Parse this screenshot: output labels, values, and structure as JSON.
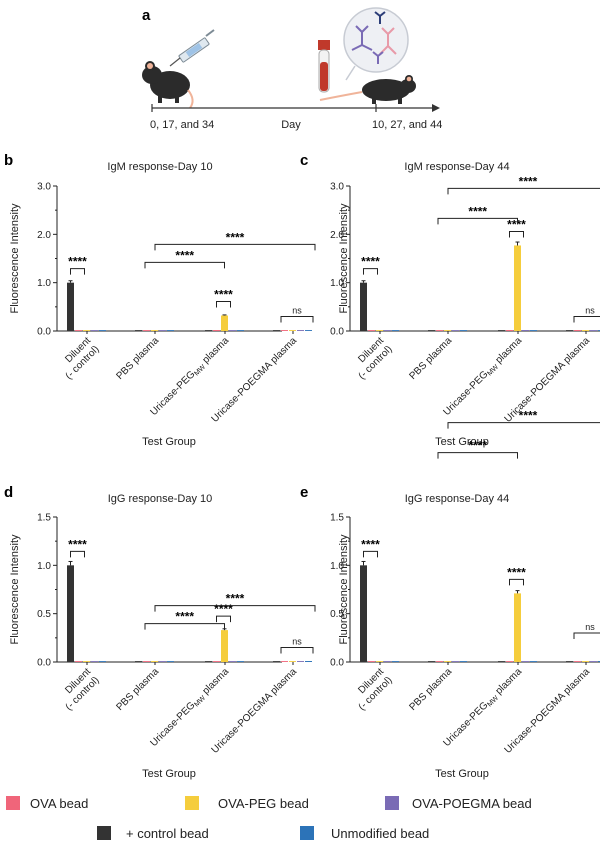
{
  "timeline": {
    "label": "a",
    "injection_days": "0, 17, and 34",
    "axis_label": "Day",
    "bleed_days": "10, 27, and 44"
  },
  "colors": {
    "ova": "#f0657a",
    "ova_peg": "#f5cd3c",
    "ova_poegma": "#7a6bb5",
    "control": "#333333",
    "unmodified": "#2c73b8",
    "skin": "#f0b49a",
    "blood": "#c0392b",
    "mouse": "#2b2b2b"
  },
  "legend": {
    "series_order": [
      "OVA bead",
      "OVA-PEG bead",
      "OVA-POEGMA bead",
      "+ control bead",
      "Unmodified bead"
    ]
  },
  "chart_data": [
    {
      "panel": "b",
      "type": "bar",
      "title": "IgM response-Day 10",
      "xlabel": "Test Group",
      "ylabel": "Fluorescence Intensity",
      "ylim": [
        0,
        3.0
      ],
      "yticks": [
        "0.0",
        "1.0",
        "2.0",
        "3.0"
      ],
      "categories": [
        "Diluent\n(- control)",
        "PBS plasma",
        "Uricase-PEGMW plasma",
        "Uricase-POEGMA plasma"
      ],
      "series": [
        {
          "name": "+ control bead",
          "values": [
            1.0,
            0,
            0,
            0
          ]
        },
        {
          "name": "OVA bead",
          "values": [
            0.01,
            0.01,
            0.02,
            0.01
          ]
        },
        {
          "name": "OVA-PEG bead",
          "values": [
            0.0,
            0.0,
            0.32,
            0.0
          ]
        },
        {
          "name": "OVA-POEGMA bead",
          "values": [
            0.0,
            0.0,
            0.01,
            0.0
          ]
        },
        {
          "name": "Unmodified bead",
          "values": [
            0.0,
            0.0,
            0.0,
            0.01
          ]
        }
      ],
      "significance": [
        {
          "label": "****"
        },
        {
          "label": "****"
        },
        {
          "label": "****"
        },
        {
          "label": "****"
        },
        {
          "label": "ns"
        }
      ]
    },
    {
      "panel": "c",
      "type": "bar",
      "title": "IgM response-Day 44",
      "xlabel": "Test Group",
      "ylabel": "Fluorescence Intensity",
      "ylim": [
        0,
        3.0
      ],
      "yticks": [
        "0.0",
        "1.0",
        "2.0",
        "3.0"
      ],
      "categories": [
        "Diluent\n(- control)",
        "PBS plasma",
        "Uricase-PEGMW plasma",
        "Uricase-POEGMA plasma"
      ],
      "series": [
        {
          "name": "+ control bead",
          "values": [
            1.0,
            0,
            0,
            0
          ]
        },
        {
          "name": "OVA bead",
          "values": [
            0.01,
            0.01,
            0.02,
            0.02
          ]
        },
        {
          "name": "OVA-PEG bead",
          "values": [
            0.0,
            0.01,
            1.77,
            0.0
          ]
        },
        {
          "name": "OVA-POEGMA bead",
          "values": [
            0.0,
            0.0,
            0.02,
            0.0
          ]
        },
        {
          "name": "Unmodified bead",
          "values": [
            0.0,
            0.0,
            0.0,
            0.01
          ]
        }
      ],
      "significance": [
        {
          "label": "****"
        },
        {
          "label": "****"
        },
        {
          "label": "****"
        },
        {
          "label": "****"
        },
        {
          "label": "ns"
        }
      ]
    },
    {
      "panel": "d",
      "type": "bar",
      "title": "IgG response-Day 10",
      "xlabel": "Test Group",
      "ylabel": "Fluorescence Intensity",
      "ylim": [
        0,
        1.5
      ],
      "yticks": [
        "0.0",
        "0.5",
        "1.0",
        "1.5"
      ],
      "categories": [
        "Diluent\n(- control)",
        "PBS plasma",
        "Uricase-PEGMW plasma",
        "Uricase-POEGMA plasma"
      ],
      "series": [
        {
          "name": "+ control bead",
          "values": [
            1.0,
            0,
            0,
            0
          ]
        },
        {
          "name": "OVA bead",
          "values": [
            0.0,
            0.0,
            0.0,
            0.0
          ]
        },
        {
          "name": "OVA-PEG bead",
          "values": [
            0.0,
            0.0,
            0.33,
            0.0
          ]
        },
        {
          "name": "OVA-POEGMA bead",
          "values": [
            0.0,
            0.0,
            0.0,
            0.0
          ]
        },
        {
          "name": "Unmodified bead",
          "values": [
            0.0,
            0.0,
            0.0,
            0.01
          ]
        }
      ],
      "significance": [
        {
          "label": "****"
        },
        {
          "label": "****"
        },
        {
          "label": "****"
        },
        {
          "label": "****"
        },
        {
          "label": "ns"
        }
      ]
    },
    {
      "panel": "e",
      "type": "bar",
      "title": "IgG response-Day 44",
      "xlabel": "Test Group",
      "ylabel": "Fluorescence Intensity",
      "ylim": [
        0,
        1.5
      ],
      "yticks": [
        "0.0",
        "0.5",
        "1.0",
        "1.5"
      ],
      "categories": [
        "Diluent\n(- control)",
        "PBS plasma",
        "Uricase-PEGMW plasma",
        "Uricase-POEGMA plasma"
      ],
      "series": [
        {
          "name": "+ control bead",
          "values": [
            1.0,
            0,
            0,
            0
          ]
        },
        {
          "name": "OVA bead",
          "values": [
            0.0,
            0.0,
            0.0,
            0.0
          ]
        },
        {
          "name": "OVA-PEG bead",
          "values": [
            0.0,
            0.0,
            0.71,
            0.0
          ]
        },
        {
          "name": "OVA-POEGMA bead",
          "values": [
            0.0,
            0.0,
            0.0,
            0.0
          ]
        },
        {
          "name": "Unmodified bead",
          "values": [
            0.0,
            0.0,
            0.0,
            0.01
          ]
        }
      ],
      "significance": [
        {
          "label": "****"
        },
        {
          "label": "****"
        },
        {
          "label": "****"
        },
        {
          "label": "****"
        },
        {
          "label": "ns"
        }
      ]
    }
  ]
}
